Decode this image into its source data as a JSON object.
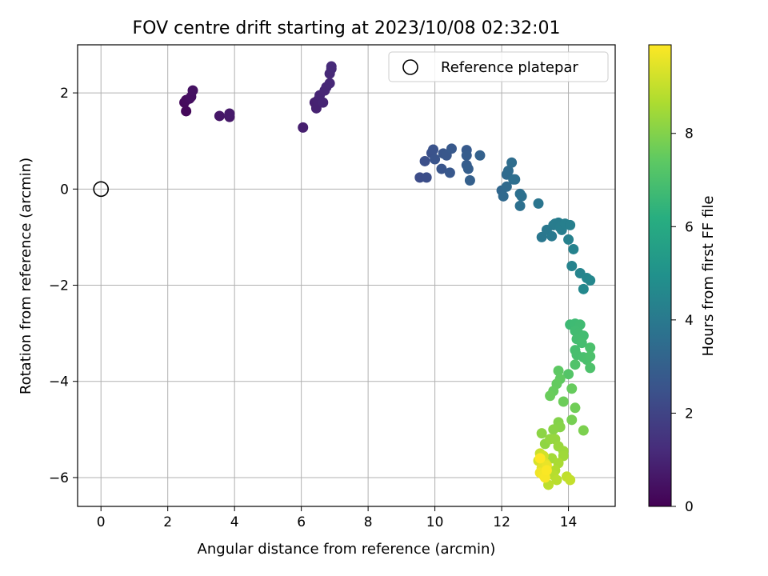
{
  "chart_data": {
    "type": "scatter",
    "title": "FOV centre drift starting at 2023/10/08 02:32:01",
    "xlabel": "Angular distance from reference (arcmin)",
    "ylabel": "Rotation from reference (arcmin)",
    "xlim": [
      -0.7,
      15.4
    ],
    "ylim": [
      -6.6,
      3.0
    ],
    "xticks": [
      0,
      2,
      4,
      6,
      8,
      10,
      12,
      14
    ],
    "yticks": [
      2,
      0,
      -2,
      -4,
      -6
    ],
    "xtick_labels": [
      "0",
      "2",
      "4",
      "6",
      "8",
      "10",
      "12",
      "14"
    ],
    "ytick_labels": [
      "2",
      "0",
      "−2",
      "−4",
      "−6"
    ],
    "grid": true,
    "legend": {
      "placement": "top-right",
      "entries": [
        "Reference platepar"
      ]
    },
    "reference_point": {
      "x": 0,
      "y": 0
    },
    "colorbar": {
      "label": "Hours from first FF file",
      "colormap": "viridis",
      "range": [
        0,
        9.9
      ],
      "ticks": [
        0,
        2,
        4,
        6,
        8
      ],
      "tick_labels": [
        "0",
        "2",
        "4",
        "6",
        "8"
      ]
    },
    "points": [
      {
        "x": 2.55,
        "y": 1.62,
        "h": 0.2
      },
      {
        "x": 2.5,
        "y": 1.8,
        "h": 0.25
      },
      {
        "x": 2.55,
        "y": 1.85,
        "h": 0.3
      },
      {
        "x": 2.65,
        "y": 1.88,
        "h": 0.35
      },
      {
        "x": 2.7,
        "y": 1.92,
        "h": 0.4
      },
      {
        "x": 2.75,
        "y": 2.05,
        "h": 0.45
      },
      {
        "x": 3.55,
        "y": 1.52,
        "h": 0.6
      },
      {
        "x": 3.85,
        "y": 1.5,
        "h": 0.65
      },
      {
        "x": 3.85,
        "y": 1.57,
        "h": 0.7
      },
      {
        "x": 6.05,
        "y": 1.28,
        "h": 0.85
      },
      {
        "x": 6.4,
        "y": 1.8,
        "h": 0.9
      },
      {
        "x": 6.45,
        "y": 1.68,
        "h": 0.92
      },
      {
        "x": 6.5,
        "y": 1.85,
        "h": 0.95
      },
      {
        "x": 6.55,
        "y": 1.95,
        "h": 1.0
      },
      {
        "x": 6.65,
        "y": 1.8,
        "h": 1.02
      },
      {
        "x": 6.7,
        "y": 2.05,
        "h": 1.05
      },
      {
        "x": 6.75,
        "y": 2.12,
        "h": 1.08
      },
      {
        "x": 6.85,
        "y": 2.2,
        "h": 1.1
      },
      {
        "x": 6.85,
        "y": 2.4,
        "h": 1.12
      },
      {
        "x": 6.9,
        "y": 2.5,
        "h": 1.15
      },
      {
        "x": 6.9,
        "y": 2.55,
        "h": 1.18
      },
      {
        "x": 9.55,
        "y": 0.24,
        "h": 2.3
      },
      {
        "x": 9.75,
        "y": 0.24,
        "h": 2.35
      },
      {
        "x": 9.7,
        "y": 0.58,
        "h": 2.4
      },
      {
        "x": 9.9,
        "y": 0.75,
        "h": 2.45
      },
      {
        "x": 9.95,
        "y": 0.82,
        "h": 2.5
      },
      {
        "x": 10.0,
        "y": 0.62,
        "h": 2.55
      },
      {
        "x": 10.2,
        "y": 0.42,
        "h": 2.6
      },
      {
        "x": 10.25,
        "y": 0.74,
        "h": 2.62
      },
      {
        "x": 10.35,
        "y": 0.7,
        "h": 2.65
      },
      {
        "x": 10.45,
        "y": 0.34,
        "h": 2.7
      },
      {
        "x": 10.5,
        "y": 0.84,
        "h": 2.75
      },
      {
        "x": 10.95,
        "y": 0.81,
        "h": 2.8
      },
      {
        "x": 10.95,
        "y": 0.7,
        "h": 2.85
      },
      {
        "x": 10.95,
        "y": 0.5,
        "h": 2.9
      },
      {
        "x": 11.0,
        "y": 0.42,
        "h": 2.95
      },
      {
        "x": 11.05,
        "y": 0.18,
        "h": 3.0
      },
      {
        "x": 11.35,
        "y": 0.7,
        "h": 3.05
      },
      {
        "x": 12.0,
        "y": -0.03,
        "h": 3.3
      },
      {
        "x": 12.05,
        "y": -0.15,
        "h": 3.35
      },
      {
        "x": 12.15,
        "y": 0.05,
        "h": 3.4
      },
      {
        "x": 12.15,
        "y": 0.3,
        "h": 3.42
      },
      {
        "x": 12.2,
        "y": 0.38,
        "h": 3.45
      },
      {
        "x": 12.3,
        "y": 0.55,
        "h": 3.5
      },
      {
        "x": 12.35,
        "y": 0.2,
        "h": 3.55
      },
      {
        "x": 12.4,
        "y": 0.2,
        "h": 3.58
      },
      {
        "x": 12.55,
        "y": -0.1,
        "h": 3.6
      },
      {
        "x": 12.6,
        "y": -0.15,
        "h": 3.62
      },
      {
        "x": 12.55,
        "y": -0.35,
        "h": 3.65
      },
      {
        "x": 13.1,
        "y": -0.3,
        "h": 3.85
      },
      {
        "x": 13.2,
        "y": -1.0,
        "h": 3.9
      },
      {
        "x": 13.35,
        "y": -0.85,
        "h": 3.95
      },
      {
        "x": 13.5,
        "y": -0.98,
        "h": 4.0
      },
      {
        "x": 13.55,
        "y": -0.75,
        "h": 4.05
      },
      {
        "x": 13.6,
        "y": -0.72,
        "h": 4.1
      },
      {
        "x": 13.7,
        "y": -0.7,
        "h": 4.12
      },
      {
        "x": 13.75,
        "y": -0.8,
        "h": 4.15
      },
      {
        "x": 13.8,
        "y": -0.85,
        "h": 4.2
      },
      {
        "x": 13.9,
        "y": -0.72,
        "h": 4.22
      },
      {
        "x": 14.05,
        "y": -0.75,
        "h": 4.25
      },
      {
        "x": 14.0,
        "y": -1.05,
        "h": 4.3
      },
      {
        "x": 14.15,
        "y": -1.25,
        "h": 4.35
      },
      {
        "x": 14.1,
        "y": -1.6,
        "h": 4.4
      },
      {
        "x": 14.35,
        "y": -1.75,
        "h": 4.45
      },
      {
        "x": 14.55,
        "y": -1.85,
        "h": 4.5
      },
      {
        "x": 14.65,
        "y": -1.9,
        "h": 4.55
      },
      {
        "x": 14.45,
        "y": -2.08,
        "h": 4.6
      },
      {
        "x": 14.05,
        "y": -2.82,
        "h": 6.7
      },
      {
        "x": 14.2,
        "y": -2.8,
        "h": 6.72
      },
      {
        "x": 14.35,
        "y": -2.82,
        "h": 6.75
      },
      {
        "x": 14.2,
        "y": -2.95,
        "h": 6.78
      },
      {
        "x": 14.3,
        "y": -3.0,
        "h": 6.8
      },
      {
        "x": 14.45,
        "y": -3.05,
        "h": 6.82
      },
      {
        "x": 14.25,
        "y": -3.12,
        "h": 6.85
      },
      {
        "x": 14.4,
        "y": -3.2,
        "h": 6.88
      },
      {
        "x": 14.2,
        "y": -3.35,
        "h": 6.9
      },
      {
        "x": 14.25,
        "y": -3.45,
        "h": 6.92
      },
      {
        "x": 14.45,
        "y": -3.5,
        "h": 6.95
      },
      {
        "x": 14.55,
        "y": -3.55,
        "h": 6.98
      },
      {
        "x": 14.65,
        "y": -3.3,
        "h": 7.0
      },
      {
        "x": 14.65,
        "y": -3.48,
        "h": 7.02
      },
      {
        "x": 14.65,
        "y": -3.72,
        "h": 7.05
      },
      {
        "x": 14.2,
        "y": -3.65,
        "h": 7.1
      },
      {
        "x": 14.0,
        "y": -3.85,
        "h": 7.2
      },
      {
        "x": 13.7,
        "y": -3.78,
        "h": 7.4
      },
      {
        "x": 13.75,
        "y": -3.95,
        "h": 7.45
      },
      {
        "x": 13.65,
        "y": -4.05,
        "h": 7.5
      },
      {
        "x": 13.55,
        "y": -4.2,
        "h": 7.55
      },
      {
        "x": 13.45,
        "y": -4.3,
        "h": 7.6
      },
      {
        "x": 13.85,
        "y": -4.42,
        "h": 7.65
      },
      {
        "x": 14.1,
        "y": -4.15,
        "h": 7.55
      },
      {
        "x": 14.2,
        "y": -4.55,
        "h": 7.7
      },
      {
        "x": 14.1,
        "y": -4.8,
        "h": 7.8
      },
      {
        "x": 14.45,
        "y": -5.02,
        "h": 7.9
      },
      {
        "x": 13.7,
        "y": -4.85,
        "h": 8.0
      },
      {
        "x": 13.75,
        "y": -4.95,
        "h": 8.05
      },
      {
        "x": 13.55,
        "y": -5.0,
        "h": 8.1
      },
      {
        "x": 13.2,
        "y": -5.08,
        "h": 8.15
      },
      {
        "x": 13.3,
        "y": -5.3,
        "h": 8.2
      },
      {
        "x": 13.45,
        "y": -5.2,
        "h": 8.25
      },
      {
        "x": 13.6,
        "y": -5.2,
        "h": 8.3
      },
      {
        "x": 13.7,
        "y": -5.35,
        "h": 8.35
      },
      {
        "x": 13.85,
        "y": -5.45,
        "h": 8.4
      },
      {
        "x": 13.85,
        "y": -5.55,
        "h": 8.45
      },
      {
        "x": 13.5,
        "y": -5.6,
        "h": 8.5
      },
      {
        "x": 13.7,
        "y": -5.7,
        "h": 8.6
      },
      {
        "x": 13.6,
        "y": -5.85,
        "h": 8.7
      },
      {
        "x": 13.55,
        "y": -5.95,
        "h": 8.8
      },
      {
        "x": 13.65,
        "y": -6.05,
        "h": 8.85
      },
      {
        "x": 13.4,
        "y": -6.15,
        "h": 8.9
      },
      {
        "x": 13.95,
        "y": -5.98,
        "h": 8.95
      },
      {
        "x": 14.05,
        "y": -6.05,
        "h": 9.0
      },
      {
        "x": 13.15,
        "y": -5.5,
        "h": 9.1
      },
      {
        "x": 13.25,
        "y": -5.55,
        "h": 9.2
      },
      {
        "x": 13.1,
        "y": -5.65,
        "h": 9.3
      },
      {
        "x": 13.3,
        "y": -5.7,
        "h": 9.4
      },
      {
        "x": 13.2,
        "y": -5.8,
        "h": 9.5
      },
      {
        "x": 13.35,
        "y": -5.75,
        "h": 9.6
      },
      {
        "x": 13.15,
        "y": -5.9,
        "h": 9.7
      },
      {
        "x": 13.25,
        "y": -5.95,
        "h": 9.75
      },
      {
        "x": 13.3,
        "y": -6.0,
        "h": 9.8
      },
      {
        "x": 13.35,
        "y": -5.85,
        "h": 9.85
      },
      {
        "x": 13.15,
        "y": -5.6,
        "h": 9.9
      }
    ]
  }
}
